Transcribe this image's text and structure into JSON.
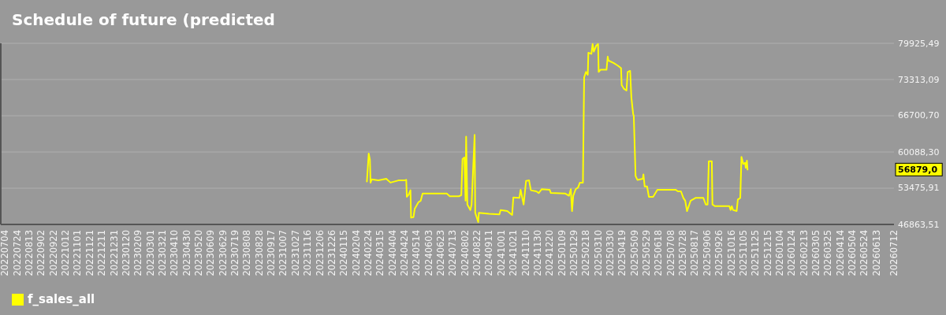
{
  "chart_data": {
    "type": "line",
    "title": "Schedule of future (predicted",
    "x": [
      "2024-02-22",
      "2024-02-25",
      "2024-02-27",
      "2024-02-28",
      "2024-03-01",
      "2024-03-12",
      "2024-03-25",
      "2024-04-01",
      "2024-04-14",
      "2024-04-24",
      "2024-04-27",
      "2024-04-28",
      "2024-05-01",
      "2024-05-04",
      "2024-05-05",
      "2024-05-09",
      "2024-05-11",
      "2024-05-17",
      "2024-05-21",
      "2024-05-24",
      "2024-06-12",
      "2024-07-03",
      "2024-07-08",
      "2024-07-23",
      "2024-07-27",
      "2024-07-29",
      "2024-08-01",
      "2024-08-03",
      "2024-08-04",
      "2024-08-06",
      "2024-08-11",
      "2024-08-13",
      "2024-08-18",
      "2024-08-19",
      "2024-08-24",
      "2024-08-25",
      "2024-09-11",
      "2024-09-28",
      "2024-09-30",
      "2024-10-11",
      "2024-10-19",
      "2024-10-21",
      "2024-10-31",
      "2024-11-02",
      "2024-11-07",
      "2024-11-11",
      "2024-11-16",
      "2024-11-19",
      "2024-11-28",
      "2024-12-02",
      "2024-12-07",
      "2024-12-20",
      "2024-12-22",
      "2025-01-15",
      "2025-01-21",
      "2025-01-24",
      "2025-01-26",
      "2025-01-28",
      "2025-02-01",
      "2025-02-05",
      "2025-02-08",
      "2025-02-13",
      "2025-02-15",
      "2025-02-18",
      "2025-02-21",
      "2025-02-22",
      "2025-02-27",
      "2025-03-01",
      "2025-03-03",
      "2025-03-07",
      "2025-03-10",
      "2025-03-11",
      "2025-03-14",
      "2025-03-24",
      "2025-03-26",
      "2025-03-27",
      "2025-04-05",
      "2025-04-11",
      "2025-04-17",
      "2025-04-18",
      "2025-04-22",
      "2025-04-26",
      "2025-04-28",
      "2025-05-02",
      "2025-05-04",
      "2025-05-07",
      "2025-05-08",
      "2025-05-11",
      "2025-05-14",
      "2025-05-23",
      "2025-05-24",
      "2025-05-26",
      "2025-05-30",
      "2025-06-02",
      "2025-06-09",
      "2025-06-16",
      "2025-07-16",
      "2025-07-20",
      "2025-07-25",
      "2025-07-29",
      "2025-08-01",
      "2025-08-04",
      "2025-08-10",
      "2025-08-18",
      "2025-08-31",
      "2025-09-04",
      "2025-09-07",
      "2025-09-09",
      "2025-09-14",
      "2025-09-15",
      "2025-09-19",
      "2025-10-13",
      "2025-10-15",
      "2025-10-17",
      "2025-10-19",
      "2025-10-25",
      "2025-10-27",
      "2025-10-31",
      "2025-11-02",
      "2025-11-05",
      "2025-11-08",
      "2025-11-09",
      "2025-11-11",
      "2025-11-12"
    ],
    "series": [
      {
        "name": "f_sales_all",
        "color": "#ffff00",
        "values": [
          54700,
          59800,
          58700,
          54500,
          55100,
          54900,
          55200,
          54500,
          54900,
          54900,
          55000,
          51900,
          52300,
          53100,
          48100,
          48200,
          49700,
          50900,
          51200,
          52500,
          52500,
          52500,
          52000,
          52000,
          52200,
          58800,
          59100,
          51200,
          62900,
          50500,
          49500,
          50500,
          63200,
          49000,
          47300,
          49000,
          48800,
          48700,
          49500,
          49300,
          48600,
          51800,
          51700,
          53200,
          50500,
          54800,
          54900,
          53100,
          52900,
          52600,
          53300,
          53200,
          52600,
          52500,
          52100,
          53300,
          49300,
          52100,
          53300,
          53600,
          54500,
          54500,
          73700,
          74700,
          74200,
          78200,
          78000,
          79800,
          78400,
          79500,
          79800,
          74700,
          75100,
          75100,
          77500,
          76800,
          76300,
          75900,
          75400,
          72300,
          71600,
          71300,
          74700,
          74900,
          70100,
          67000,
          66700,
          55700,
          55000,
          55200,
          56000,
          53800,
          53800,
          51900,
          51900,
          53200,
          53200,
          52900,
          52900,
          51700,
          51200,
          49300,
          51200,
          51700,
          51700,
          50500,
          50500,
          58400,
          58400,
          50500,
          50200,
          50200,
          49500,
          50200,
          49500,
          49300,
          51400,
          51700,
          59200,
          57900,
          58100,
          57200,
          58500,
          56879
        ]
      }
    ],
    "xlim": [
      "2022-06-27",
      "2026-07-12"
    ],
    "xticks": [
      {
        "value": "2022-07-04",
        "label": "20220704"
      },
      {
        "value": "2022-07-24",
        "label": "20220724"
      },
      {
        "value": "2022-08-13",
        "label": "20220813"
      },
      {
        "value": "2022-09-02",
        "label": "20220902"
      },
      {
        "value": "2022-09-22",
        "label": "20220922"
      },
      {
        "value": "2022-10-12",
        "label": "20221012"
      },
      {
        "value": "2022-11-01",
        "label": "20221101"
      },
      {
        "value": "2022-11-21",
        "label": "20221121"
      },
      {
        "value": "2022-12-11",
        "label": "20221211"
      },
      {
        "value": "2022-12-31",
        "label": "20221231"
      },
      {
        "value": "2023-01-20",
        "label": "20230120"
      },
      {
        "value": "2023-02-09",
        "label": "20230209"
      },
      {
        "value": "2023-03-01",
        "label": "20230301"
      },
      {
        "value": "2023-03-21",
        "label": "20230321"
      },
      {
        "value": "2023-04-10",
        "label": "20230410"
      },
      {
        "value": "2023-04-30",
        "label": "20230430"
      },
      {
        "value": "2023-05-20",
        "label": "20230520"
      },
      {
        "value": "2023-06-09",
        "label": "20230609"
      },
      {
        "value": "2023-06-29",
        "label": "20230629"
      },
      {
        "value": "2023-07-19",
        "label": "20230719"
      },
      {
        "value": "2023-08-08",
        "label": "20230808"
      },
      {
        "value": "2023-08-28",
        "label": "20230828"
      },
      {
        "value": "2023-09-17",
        "label": "20230917"
      },
      {
        "value": "2023-10-07",
        "label": "20231007"
      },
      {
        "value": "2023-10-27",
        "label": "20231027"
      },
      {
        "value": "2023-11-16",
        "label": "20231116"
      },
      {
        "value": "2023-12-06",
        "label": "20231206"
      },
      {
        "value": "2023-12-26",
        "label": "20231226"
      },
      {
        "value": "2024-01-15",
        "label": "20240115"
      },
      {
        "value": "2024-02-04",
        "label": "20240204"
      },
      {
        "value": "2024-02-24",
        "label": "20240224"
      },
      {
        "value": "2024-03-15",
        "label": "20240315"
      },
      {
        "value": "2024-04-04",
        "label": "20240404"
      },
      {
        "value": "2024-04-24",
        "label": "20240424"
      },
      {
        "value": "2024-05-14",
        "label": "20240514"
      },
      {
        "value": "2024-06-03",
        "label": "20240603"
      },
      {
        "value": "2024-06-23",
        "label": "20240623"
      },
      {
        "value": "2024-07-13",
        "label": "20240713"
      },
      {
        "value": "2024-08-02",
        "label": "20240802"
      },
      {
        "value": "2024-08-22",
        "label": "20240822"
      },
      {
        "value": "2024-09-11",
        "label": "20240911"
      },
      {
        "value": "2024-10-01",
        "label": "20241001"
      },
      {
        "value": "2024-10-21",
        "label": "20241021"
      },
      {
        "value": "2024-11-10",
        "label": "20241110"
      },
      {
        "value": "2024-11-30",
        "label": "20241130"
      },
      {
        "value": "2024-12-20",
        "label": "20241220"
      },
      {
        "value": "2025-01-09",
        "label": "20250109"
      },
      {
        "value": "2025-01-29",
        "label": "20250129"
      },
      {
        "value": "2025-02-18",
        "label": "20250218"
      },
      {
        "value": "2025-03-10",
        "label": "20250310"
      },
      {
        "value": "2025-03-30",
        "label": "20250330"
      },
      {
        "value": "2025-04-19",
        "label": "20250419"
      },
      {
        "value": "2025-05-09",
        "label": "20250509"
      },
      {
        "value": "2025-05-29",
        "label": "20250529"
      },
      {
        "value": "2025-06-18",
        "label": "20250618"
      },
      {
        "value": "2025-07-08",
        "label": "20250708"
      },
      {
        "value": "2025-07-28",
        "label": "20250728"
      },
      {
        "value": "2025-08-17",
        "label": "20250817"
      },
      {
        "value": "2025-09-06",
        "label": "20250906"
      },
      {
        "value": "2025-09-26",
        "label": "20250926"
      },
      {
        "value": "2025-10-16",
        "label": "20251016"
      },
      {
        "value": "2025-11-05",
        "label": "20251105"
      },
      {
        "value": "2025-11-25",
        "label": "20251125"
      },
      {
        "value": "2025-12-15",
        "label": "20251215"
      },
      {
        "value": "2026-01-04",
        "label": "20260104"
      },
      {
        "value": "2026-01-24",
        "label": "20260124"
      },
      {
        "value": "2026-02-13",
        "label": "20260213"
      },
      {
        "value": "2026-03-05",
        "label": "20260305"
      },
      {
        "value": "2026-03-25",
        "label": "20260325"
      },
      {
        "value": "2026-04-14",
        "label": "20260414"
      },
      {
        "value": "2026-05-04",
        "label": "20260504"
      },
      {
        "value": "2026-05-24",
        "label": "20260524"
      },
      {
        "value": "2026-06-13",
        "label": "20260613"
      },
      {
        "value": "2026-07-12",
        "label": "20260712"
      }
    ],
    "ylim": [
      46863.51,
      79925.49
    ],
    "yticks": [
      {
        "value": 46863.51,
        "label": "46863,51"
      },
      {
        "value": 53475.91,
        "label": "53475,91"
      },
      {
        "value": 60088.3,
        "label": "60088,30"
      },
      {
        "value": 66700.7,
        "label": "66700,70"
      },
      {
        "value": 73313.09,
        "label": "73313,09"
      },
      {
        "value": 79925.49,
        "label": "79925,49"
      }
    ],
    "annotations": [
      "56879,0"
    ],
    "grid": "y",
    "legend": "bottom left"
  }
}
